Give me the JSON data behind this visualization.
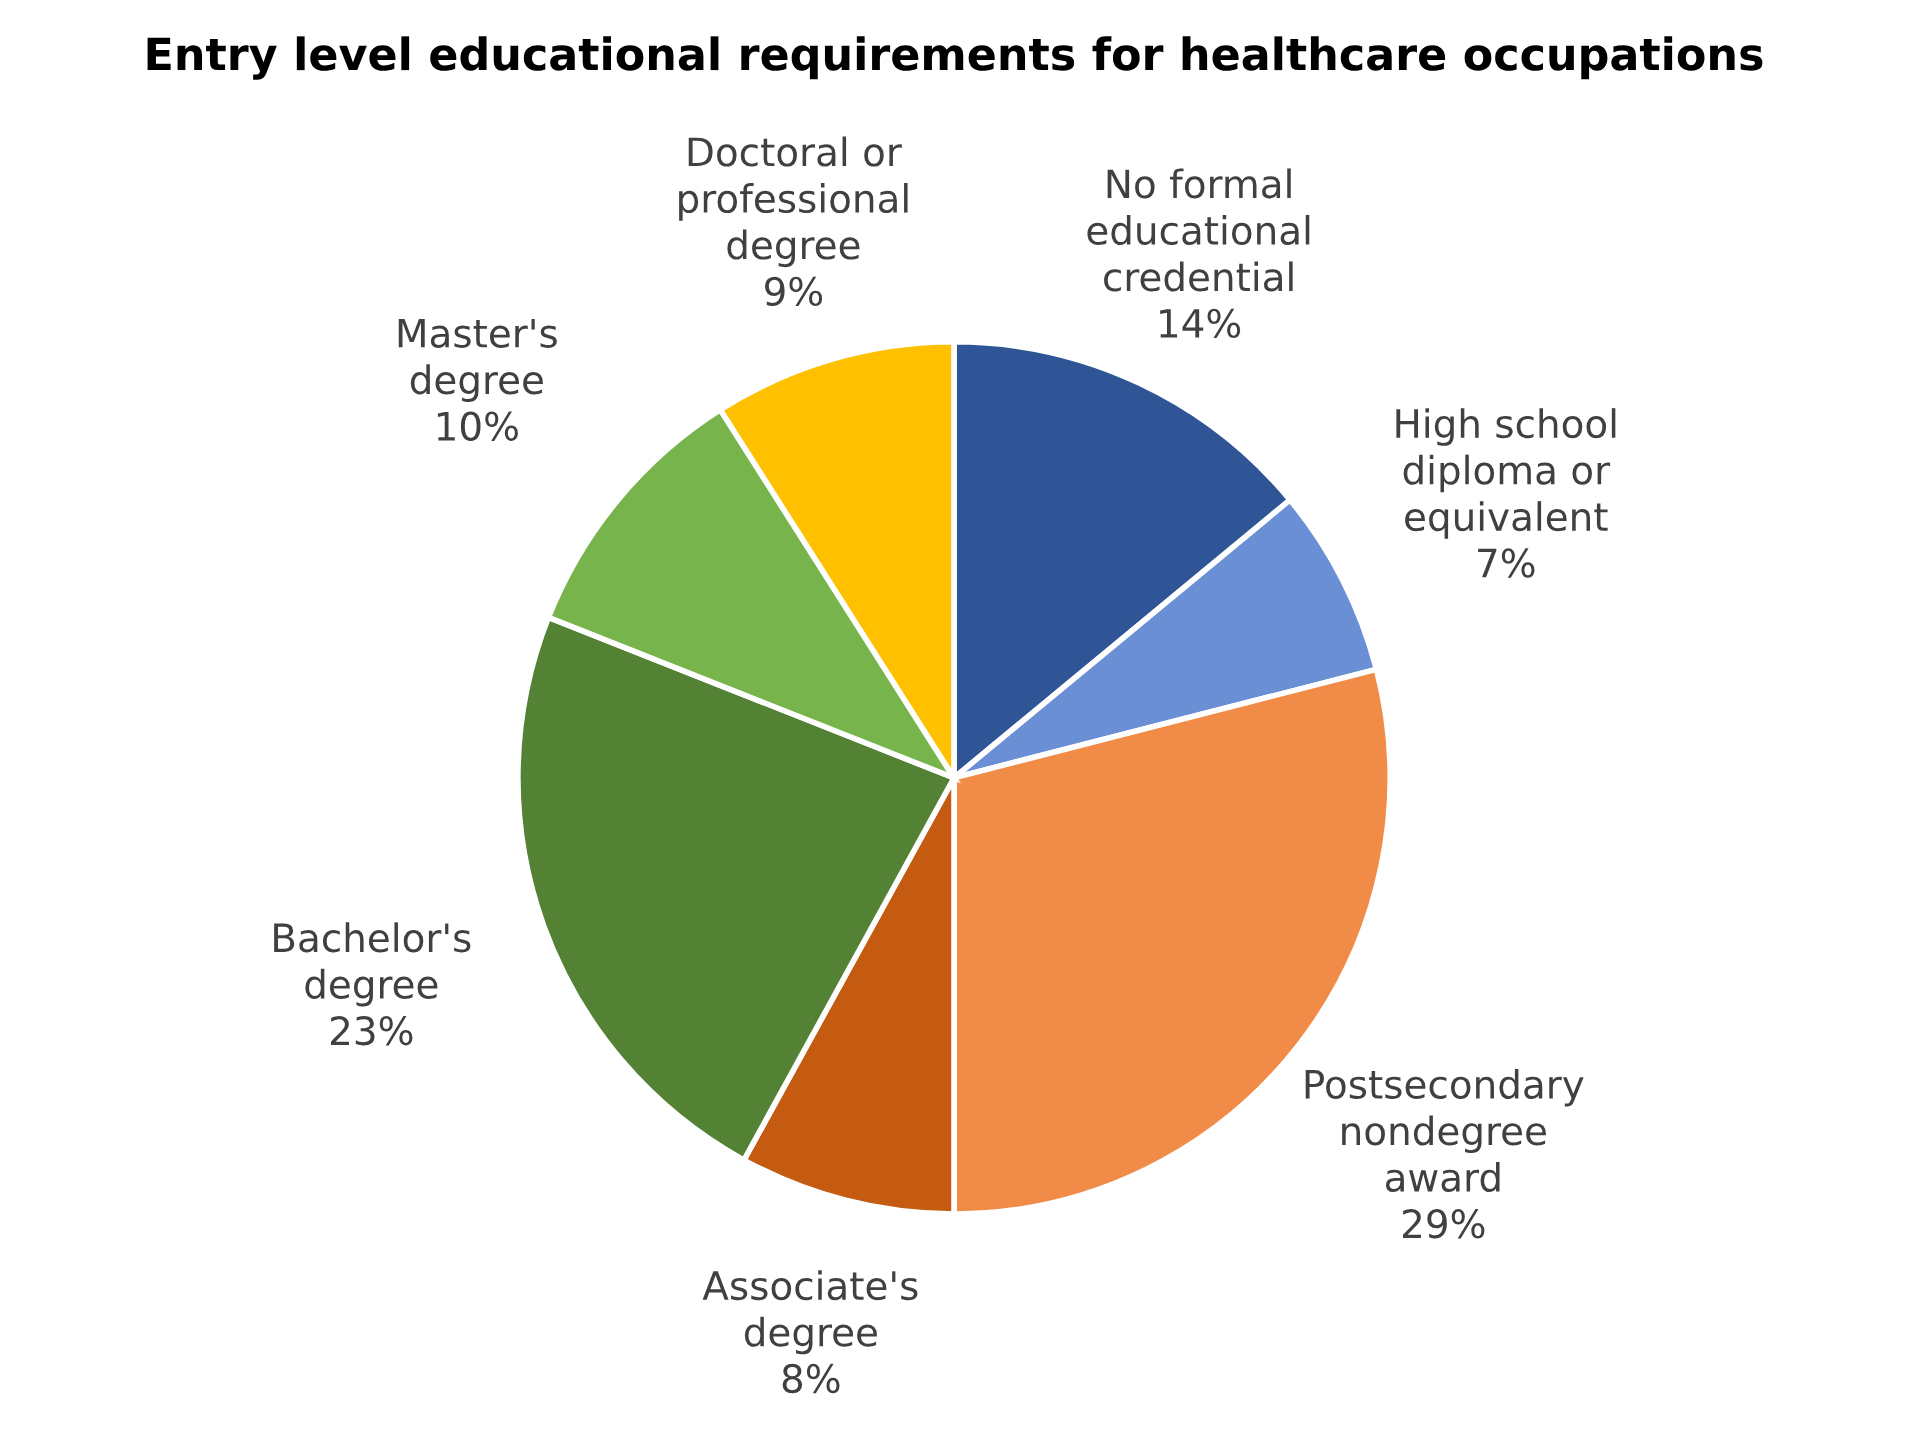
{
  "chart_data": {
    "type": "pie",
    "title": "Entry level educational requirements for healthcare occupations",
    "categories": [
      "No formal educational credential",
      "High school diploma or equivalent",
      "Postsecondary nondegree award",
      "Associate's degree",
      "Bachelor's degree",
      "Master's degree",
      "Doctoral or professional degree"
    ],
    "values": [
      14,
      7,
      29,
      8,
      23,
      10,
      9
    ],
    "colors": [
      "#2f5597",
      "#6a8fd4",
      "#f08c48",
      "#c55a11",
      "#548235",
      "#77b44c",
      "#ffc000"
    ],
    "value_labels": [
      "14%",
      "7%",
      "29%",
      "8%",
      "23%",
      "10%",
      "9%"
    ],
    "legend": false
  }
}
